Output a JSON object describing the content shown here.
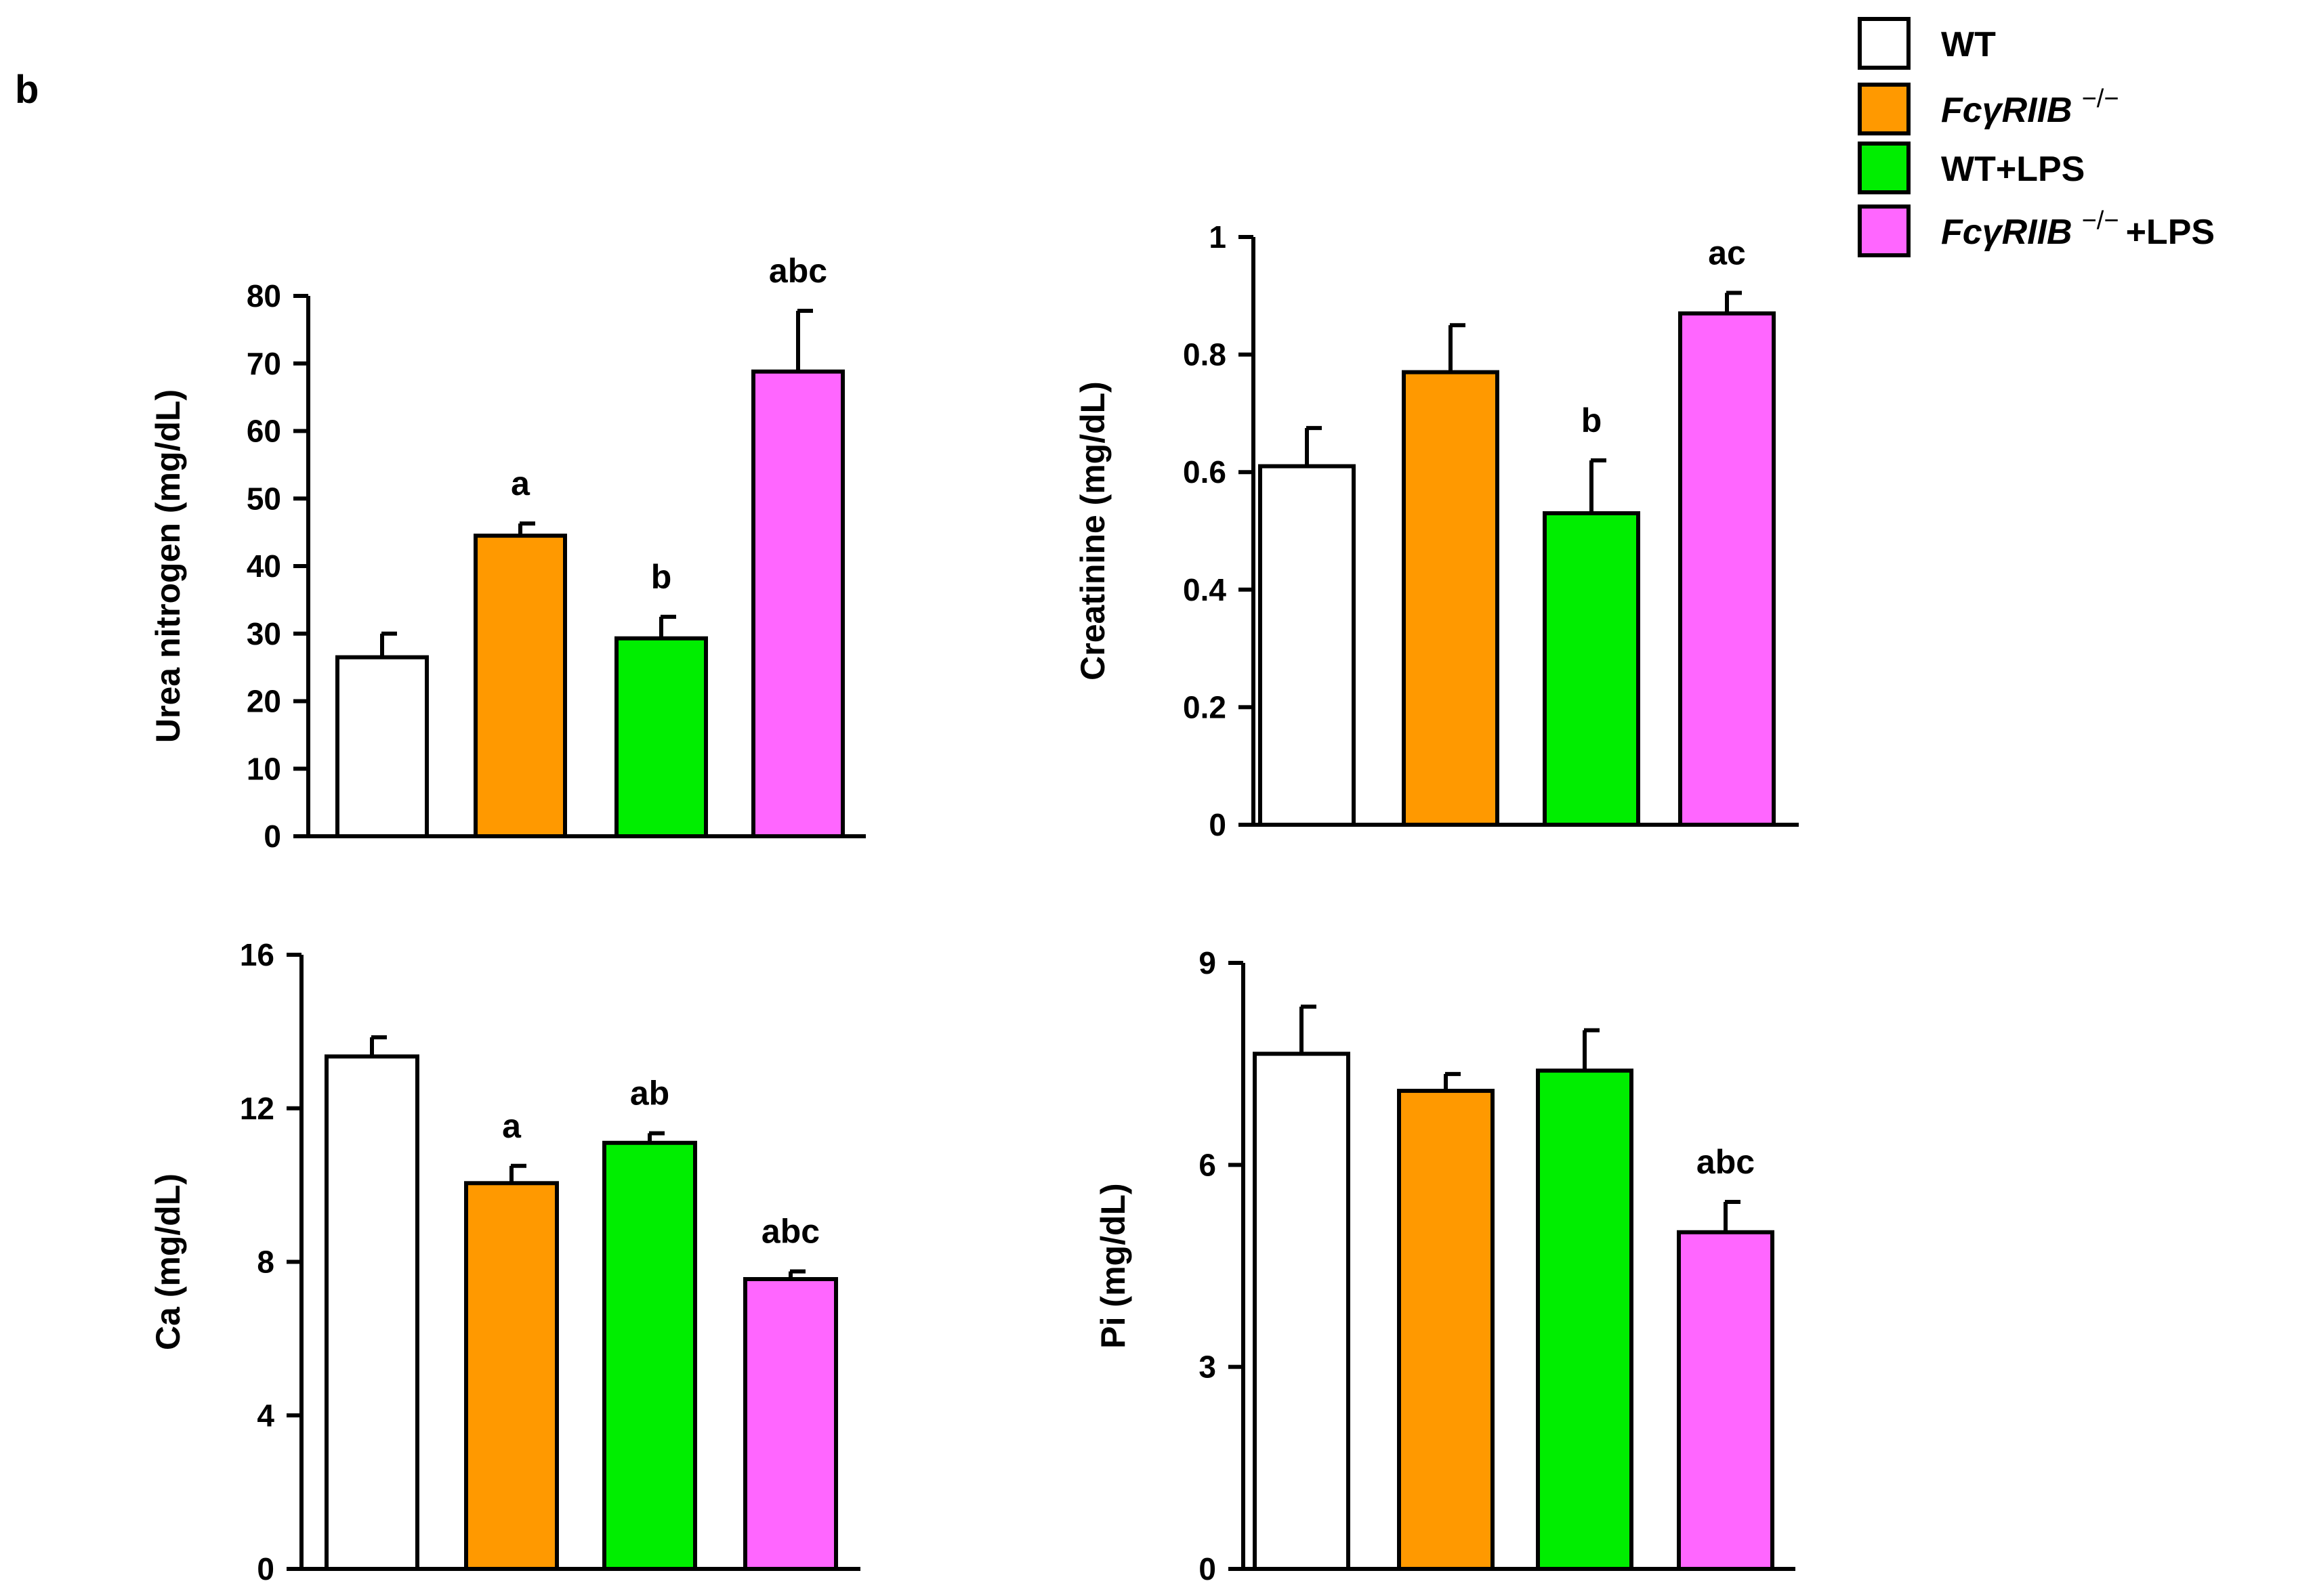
{
  "panel_letter": "b",
  "legend": {
    "items": [
      {
        "name": "wt",
        "label_main": "WT",
        "italic": false,
        "sup": "",
        "suffix": "",
        "color": "#ffffff"
      },
      {
        "name": "fcgriib-ko",
        "label_main": "FcγRIIB",
        "italic": true,
        "sup": "−/−",
        "suffix": "",
        "color": "#ff9900"
      },
      {
        "name": "wt-lps",
        "label_main": "WT+LPS",
        "italic": false,
        "sup": "",
        "suffix": "",
        "color": "#00ee00"
      },
      {
        "name": "fcgriib-ko-lps",
        "label_main": "FcγRIIB",
        "italic": true,
        "sup": "−/−",
        "suffix": "+LPS",
        "color": "#ff66ff"
      }
    ]
  },
  "chart_data": [
    {
      "type": "bar",
      "name": "urea-nitrogen",
      "ylabel": "Urea nitrogen (mg/dL)",
      "categories": [
        "WT",
        "FcγRIIB−/−",
        "WT+LPS",
        "FcγRIIB−/−+LPS"
      ],
      "values": [
        26.5,
        44.5,
        29.3,
        68.8
      ],
      "errors": [
        3.5,
        1.8,
        3.2,
        9.0
      ],
      "significance": [
        "",
        "a",
        "b",
        "abc"
      ],
      "ylim": [
        0,
        80
      ],
      "yticks": [
        0,
        10,
        20,
        30,
        40,
        50,
        60,
        70,
        80
      ],
      "ytick_labels": [
        "0",
        "10",
        "20",
        "30",
        "40",
        "50",
        "60",
        "70",
        "80"
      ]
    },
    {
      "type": "bar",
      "name": "creatinine",
      "ylabel": "Creatinine (mg/dL)",
      "categories": [
        "WT",
        "FcγRIIB−/−",
        "WT+LPS",
        "FcγRIIB−/−+LPS"
      ],
      "values": [
        0.61,
        0.77,
        0.53,
        0.87
      ],
      "errors": [
        0.065,
        0.08,
        0.09,
        0.035
      ],
      "significance": [
        "",
        "",
        "b",
        "ac"
      ],
      "ylim": [
        0,
        1
      ],
      "yticks": [
        0,
        0.2,
        0.4,
        0.6,
        0.8,
        1
      ],
      "ytick_labels": [
        "0",
        "0.2",
        "0.4",
        "0.6",
        "0.8",
        "1"
      ]
    },
    {
      "type": "bar",
      "name": "calcium",
      "ylabel": "Ca (mg/dL)",
      "categories": [
        "WT",
        "FcγRIIB−/−",
        "WT+LPS",
        "FcγRIIB−/−+LPS"
      ],
      "values": [
        13.35,
        10.05,
        11.1,
        7.55
      ],
      "errors": [
        0.5,
        0.45,
        0.25,
        0.2
      ],
      "significance": [
        "",
        "a",
        "ab",
        "abc"
      ],
      "ylim": [
        0,
        16
      ],
      "yticks": [
        0,
        4,
        8,
        12,
        16
      ],
      "ytick_labels": [
        "0",
        "4",
        "8",
        "12",
        "16"
      ]
    },
    {
      "type": "bar",
      "name": "phosphate",
      "ylabel": "Pi (mg/dL)",
      "categories": [
        "WT",
        "FcγRIIB−/−",
        "WT+LPS",
        "FcγRIIB−/−+LPS"
      ],
      "values": [
        7.65,
        7.1,
        7.4,
        5.0
      ],
      "errors": [
        0.7,
        0.25,
        0.6,
        0.45
      ],
      "significance": [
        "",
        "",
        "",
        "abc"
      ],
      "ylim": [
        0,
        9
      ],
      "yticks": [
        0,
        3,
        6,
        9
      ],
      "ytick_labels": [
        "0",
        "3",
        "6",
        "9"
      ]
    }
  ]
}
